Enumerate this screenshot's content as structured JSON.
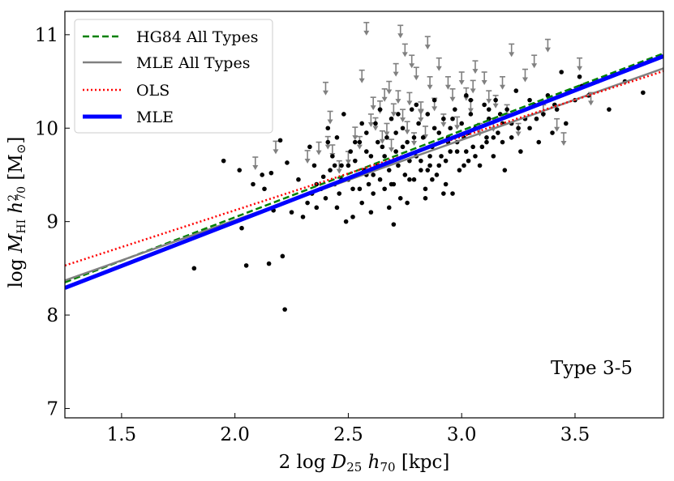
{
  "chart_data": {
    "type": "scatter",
    "title": "",
    "xlabel": "2 log D25 h70 [kpc]",
    "ylabel": "log M_HI h70^2 [M_sun]",
    "xlabel_parts": {
      "pre": "2 log ",
      "var": "D",
      "sub1": "25",
      "mid": " ",
      "var2": "h",
      "sub2": "70",
      "unit": " [kpc]"
    },
    "ylabel_parts": {
      "pre": "log ",
      "var": "M",
      "sub1": "HI",
      "mid": " ",
      "var2": "h",
      "sup2": "2",
      "sub2": "70",
      "unit_open": " [M",
      "unit_sym": "⊙",
      "unit_close": "]"
    },
    "xlim": [
      1.25,
      3.89
    ],
    "ylim": [
      6.9,
      11.25
    ],
    "xticks": [
      1.5,
      2.0,
      2.5,
      3.0,
      3.5
    ],
    "xtick_labels": [
      "1.5",
      "2.0",
      "2.5",
      "3.0",
      "3.5"
    ],
    "yticks": [
      7,
      8,
      9,
      10,
      11
    ],
    "ytick_labels": [
      "7",
      "8",
      "9",
      "10",
      "11"
    ],
    "grid": false,
    "legend_position": "top-left",
    "annotation": "Type 3-5",
    "lines": [
      {
        "name": "HG84 All Types",
        "color": "#008000",
        "style": "dashed",
        "x": [
          1.25,
          3.89
        ],
        "y": [
          8.35,
          10.8
        ]
      },
      {
        "name": "MLE All Types",
        "color": "#808080",
        "style": "solid",
        "x": [
          1.25,
          3.89
        ],
        "y": [
          8.37,
          10.64
        ]
      },
      {
        "name": "OLS",
        "color": "#ff0000",
        "style": "dotted",
        "x": [
          1.25,
          3.89
        ],
        "y": [
          8.53,
          10.61
        ]
      },
      {
        "name": "MLE",
        "color": "#0000ff",
        "style": "thick",
        "x": [
          1.25,
          3.89
        ],
        "y": [
          8.29,
          10.77
        ]
      }
    ],
    "detections": {
      "name": "Detections",
      "color": "#000000",
      "points": [
        [
          1.82,
          8.5
        ],
        [
          1.95,
          9.65
        ],
        [
          2.02,
          9.55
        ],
        [
          2.03,
          8.93
        ],
        [
          2.05,
          8.53
        ],
        [
          2.08,
          9.4
        ],
        [
          2.12,
          9.5
        ],
        [
          2.13,
          9.35
        ],
        [
          2.15,
          8.55
        ],
        [
          2.16,
          9.52
        ],
        [
          2.17,
          9.12
        ],
        [
          2.2,
          9.87
        ],
        [
          2.21,
          8.63
        ],
        [
          2.22,
          8.06
        ],
        [
          2.23,
          9.63
        ],
        [
          2.25,
          9.1
        ],
        [
          2.28,
          9.45
        ],
        [
          2.3,
          9.05
        ],
        [
          2.32,
          9.2
        ],
        [
          2.33,
          9.8
        ],
        [
          2.34,
          9.3
        ],
        [
          2.35,
          9.6
        ],
        [
          2.36,
          9.15
        ],
        [
          2.38,
          9.35
        ],
        [
          2.39,
          9.48
        ],
        [
          2.4,
          9.25
        ],
        [
          2.41,
          10.0
        ],
        [
          2.42,
          9.55
        ],
        [
          2.43,
          9.7
        ],
        [
          2.44,
          9.4
        ],
        [
          2.45,
          9.9
        ],
        [
          2.46,
          9.3
        ],
        [
          2.47,
          9.6
        ],
        [
          2.48,
          10.15
        ],
        [
          2.49,
          9.0
        ],
        [
          2.5,
          9.45
        ],
        [
          2.51,
          9.75
        ],
        [
          2.52,
          9.35
        ],
        [
          2.53,
          9.65
        ],
        [
          2.54,
          9.5
        ],
        [
          2.55,
          9.85
        ],
        [
          2.56,
          9.2
        ],
        [
          2.57,
          9.55
        ],
        [
          2.58,
          9.95
        ],
        [
          2.59,
          9.4
        ],
        [
          2.6,
          9.7
        ],
        [
          2.61,
          9.3
        ],
        [
          2.62,
          10.05
        ],
        [
          2.63,
          9.6
        ],
        [
          2.64,
          9.45
        ],
        [
          2.65,
          9.8
        ],
        [
          2.66,
          9.35
        ],
        [
          2.67,
          9.9
        ],
        [
          2.68,
          9.55
        ],
        [
          2.69,
          10.1
        ],
        [
          2.7,
          9.4
        ],
        [
          2.71,
          9.75
        ],
        [
          2.72,
          9.6
        ],
        [
          2.73,
          9.25
        ],
        [
          2.74,
          10.0
        ],
        [
          2.75,
          9.5
        ],
        [
          2.76,
          9.85
        ],
        [
          2.77,
          9.65
        ],
        [
          2.78,
          10.2
        ],
        [
          2.79,
          9.45
        ],
        [
          2.8,
          9.7
        ],
        [
          2.81,
          10.05
        ],
        [
          2.82,
          9.55
        ],
        [
          2.83,
          9.9
        ],
        [
          2.84,
          9.35
        ],
        [
          2.85,
          10.15
        ],
        [
          2.86,
          9.6
        ],
        [
          2.87,
          9.8
        ],
        [
          2.88,
          10.3
        ],
        [
          2.89,
          9.5
        ],
        [
          2.9,
          9.95
        ],
        [
          2.91,
          9.7
        ],
        [
          2.92,
          10.1
        ],
        [
          2.93,
          9.4
        ],
        [
          2.94,
          9.85
        ],
        [
          2.95,
          10.0
        ],
        [
          2.96,
          9.3
        ],
        [
          2.97,
          10.2
        ],
        [
          2.98,
          9.75
        ],
        [
          2.99,
          9.55
        ],
        [
          3.0,
          10.05
        ],
        [
          3.01,
          9.9
        ],
        [
          3.02,
          10.35
        ],
        [
          3.03,
          9.65
        ],
        [
          3.04,
          10.15
        ],
        [
          3.05,
          9.8
        ],
        [
          3.06,
          10.0
        ],
        [
          3.08,
          9.6
        ],
        [
          3.1,
          10.25
        ],
        [
          3.11,
          9.85
        ],
        [
          3.12,
          10.1
        ],
        [
          3.14,
          9.7
        ],
        [
          3.15,
          10.3
        ],
        [
          3.16,
          9.95
        ],
        [
          3.18,
          10.05
        ],
        [
          3.19,
          9.55
        ],
        [
          3.2,
          10.2
        ],
        [
          3.22,
          9.9
        ],
        [
          3.24,
          10.4
        ],
        [
          3.26,
          9.75
        ],
        [
          3.28,
          10.1
        ],
        [
          3.3,
          10.0
        ],
        [
          3.32,
          10.25
        ],
        [
          3.34,
          9.85
        ],
        [
          3.36,
          10.15
        ],
        [
          3.38,
          10.35
        ],
        [
          3.4,
          9.95
        ],
        [
          3.42,
          10.2
        ],
        [
          3.44,
          10.6
        ],
        [
          3.46,
          10.05
        ],
        [
          3.48,
          10.4
        ],
        [
          3.5,
          10.3
        ],
        [
          3.53,
          10.45
        ],
        [
          3.56,
          10.35
        ],
        [
          3.6,
          10.5
        ],
        [
          3.65,
          10.2
        ],
        [
          3.72,
          10.5
        ],
        [
          3.8,
          10.38
        ],
        [
          2.45,
          9.15
        ],
        [
          2.52,
          9.05
        ],
        [
          2.6,
          9.1
        ],
        [
          2.68,
          9.15
        ],
        [
          2.76,
          9.2
        ],
        [
          2.84,
          9.25
        ],
        [
          2.92,
          9.3
        ],
        [
          2.56,
          10.05
        ],
        [
          2.64,
          10.2
        ],
        [
          2.72,
          10.15
        ],
        [
          2.8,
          10.25
        ],
        [
          2.88,
          10.0
        ],
        [
          2.96,
          10.1
        ],
        [
          3.04,
          10.3
        ],
        [
          3.12,
          10.2
        ],
        [
          2.5,
          9.6
        ],
        [
          2.58,
          9.75
        ],
        [
          2.66,
          9.7
        ],
        [
          2.74,
          9.8
        ],
        [
          2.82,
          9.65
        ],
        [
          2.9,
          9.6
        ],
        [
          2.98,
          9.85
        ],
        [
          3.06,
          9.7
        ],
        [
          3.14,
          9.9
        ],
        [
          3.22,
          10.05
        ],
        [
          2.41,
          9.85
        ],
        [
          2.47,
          9.45
        ],
        [
          2.53,
          9.85
        ],
        [
          2.61,
          9.5
        ],
        [
          2.69,
          9.4
        ],
        [
          2.77,
          9.45
        ],
        [
          2.85,
          9.55
        ],
        [
          2.93,
          9.65
        ],
        [
          3.01,
          9.6
        ],
        [
          3.09,
          9.8
        ],
        [
          3.17,
          10.15
        ],
        [
          3.25,
          10.0
        ],
        [
          3.33,
          10.1
        ],
        [
          3.41,
          10.25
        ],
        [
          2.55,
          9.35
        ],
        [
          2.63,
          9.85
        ],
        [
          2.71,
          9.95
        ],
        [
          2.79,
          9.9
        ],
        [
          2.87,
          9.45
        ],
        [
          2.95,
          9.75
        ],
        [
          3.03,
          9.95
        ],
        [
          3.11,
          9.9
        ],
        [
          2.7,
          8.97
        ],
        [
          2.44,
          9.6
        ],
        [
          2.58,
          9.5
        ],
        [
          2.86,
          9.7
        ],
        [
          2.94,
          9.9
        ],
        [
          3.02,
          9.75
        ],
        [
          3.18,
          9.85
        ],
        [
          3.3,
          10.3
        ],
        [
          3.52,
          10.55
        ],
        [
          2.36,
          9.4
        ]
      ]
    },
    "upper_limits": {
      "name": "Upper limits",
      "color": "#808080",
      "points": [
        [
          2.09,
          9.69
        ],
        [
          2.18,
          9.86
        ],
        [
          2.32,
          9.76
        ],
        [
          2.37,
          9.85
        ],
        [
          2.4,
          10.49
        ],
        [
          2.41,
          9.91
        ],
        [
          2.42,
          10.18
        ],
        [
          2.43,
          9.82
        ],
        [
          2.46,
          9.65
        ],
        [
          2.5,
          9.75
        ],
        [
          2.53,
          10.01
        ],
        [
          2.55,
          9.91
        ],
        [
          2.58,
          11.13
        ],
        [
          2.6,
          10.15
        ],
        [
          2.61,
          10.33
        ],
        [
          2.62,
          10.11
        ],
        [
          2.64,
          10.29
        ],
        [
          2.65,
          9.97
        ],
        [
          2.66,
          10.42
        ],
        [
          2.67,
          10.05
        ],
        [
          2.68,
          10.5
        ],
        [
          2.69,
          9.88
        ],
        [
          2.7,
          10.26
        ],
        [
          2.71,
          10.69
        ],
        [
          2.72,
          10.4
        ],
        [
          2.73,
          11.1
        ],
        [
          2.74,
          10.2
        ],
        [
          2.75,
          10.9
        ],
        [
          2.76,
          10.07
        ],
        [
          2.77,
          10.38
        ],
        [
          2.78,
          10.78
        ],
        [
          2.79,
          9.95
        ],
        [
          2.8,
          10.65
        ],
        [
          2.82,
          10.28
        ],
        [
          2.84,
          10.02
        ],
        [
          2.85,
          10.98
        ],
        [
          2.86,
          10.55
        ],
        [
          2.88,
          10.32
        ],
        [
          2.9,
          10.75
        ],
        [
          2.92,
          10.15
        ],
        [
          2.94,
          10.55
        ],
        [
          2.96,
          10.42
        ],
        [
          3.0,
          10.6
        ],
        [
          3.02,
          10.43
        ],
        [
          3.04,
          10.3
        ],
        [
          3.06,
          10.72
        ],
        [
          3.08,
          10.05
        ],
        [
          3.1,
          10.6
        ],
        [
          3.12,
          10.4
        ],
        [
          3.15,
          10.35
        ],
        [
          3.18,
          10.55
        ],
        [
          3.2,
          10.25
        ],
        [
          3.22,
          10.9
        ],
        [
          3.25,
          10.05
        ],
        [
          3.28,
          10.63
        ],
        [
          3.32,
          10.78
        ],
        [
          3.36,
          10.25
        ],
        [
          3.38,
          10.95
        ],
        [
          3.42,
          10.1
        ],
        [
          3.45,
          9.95
        ],
        [
          3.52,
          10.75
        ],
        [
          3.57,
          10.38
        ],
        [
          2.82,
          10.2
        ],
        [
          2.98,
          10.12
        ],
        [
          3.05,
          10.51
        ],
        [
          3.14,
          10.1
        ],
        [
          2.56,
          10.62
        ]
      ]
    }
  }
}
